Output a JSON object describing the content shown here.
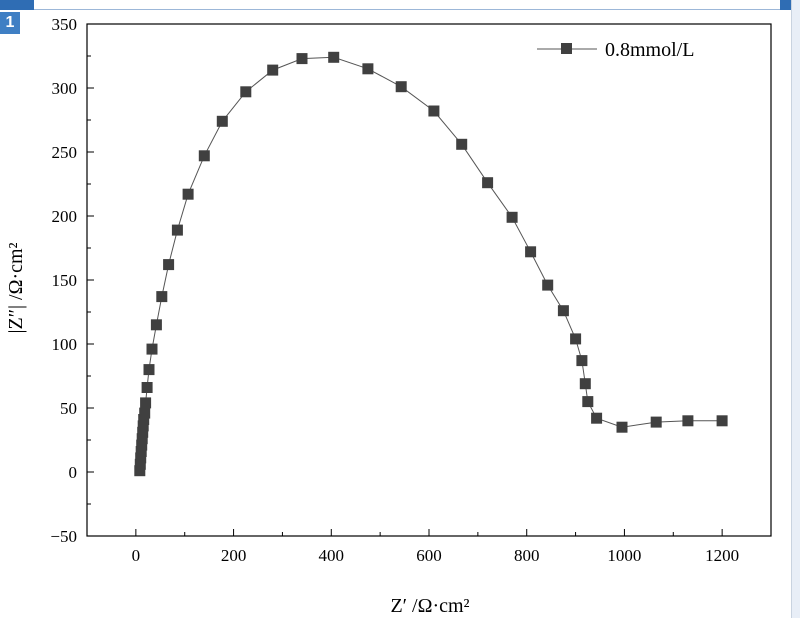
{
  "page": {
    "badge": "1"
  },
  "chart_data": {
    "type": "scatter",
    "title": "",
    "xlabel": "Z′ /Ω·cm²",
    "ylabel": "|Z″| /Ω·cm²",
    "xlim": [
      -100,
      1300
    ],
    "ylim": [
      -50,
      350
    ],
    "xticks": [
      0,
      200,
      400,
      600,
      800,
      1000,
      1200
    ],
    "yticks": [
      -50,
      0,
      50,
      100,
      150,
      200,
      250,
      300,
      350
    ],
    "grid": false,
    "legend": {
      "position": "top-right",
      "entries": [
        "0.8mmol/L"
      ]
    },
    "colors": {
      "series": "#404040",
      "line": "#555555"
    },
    "series": [
      {
        "name": "0.8mmol/L",
        "marker": "square",
        "x": [
          8,
          9,
          10,
          11,
          12,
          13,
          14,
          15,
          16,
          18,
          20,
          23,
          27,
          33,
          42,
          53,
          67,
          85,
          107,
          140,
          177,
          225,
          280,
          340,
          405,
          475,
          543,
          610,
          667,
          720,
          770,
          808,
          843,
          875,
          900,
          913,
          920,
          925,
          943,
          995,
          1065,
          1130,
          1200
        ],
        "y": [
          1,
          6,
          11,
          16,
          21,
          26,
          31,
          36,
          41,
          46,
          54,
          66,
          80,
          96,
          115,
          137,
          162,
          189,
          217,
          247,
          274,
          297,
          314,
          323,
          324,
          315,
          301,
          282,
          256,
          226,
          199,
          172,
          146,
          126,
          104,
          87,
          69,
          55,
          42,
          35,
          39,
          40,
          40
        ]
      }
    ]
  }
}
